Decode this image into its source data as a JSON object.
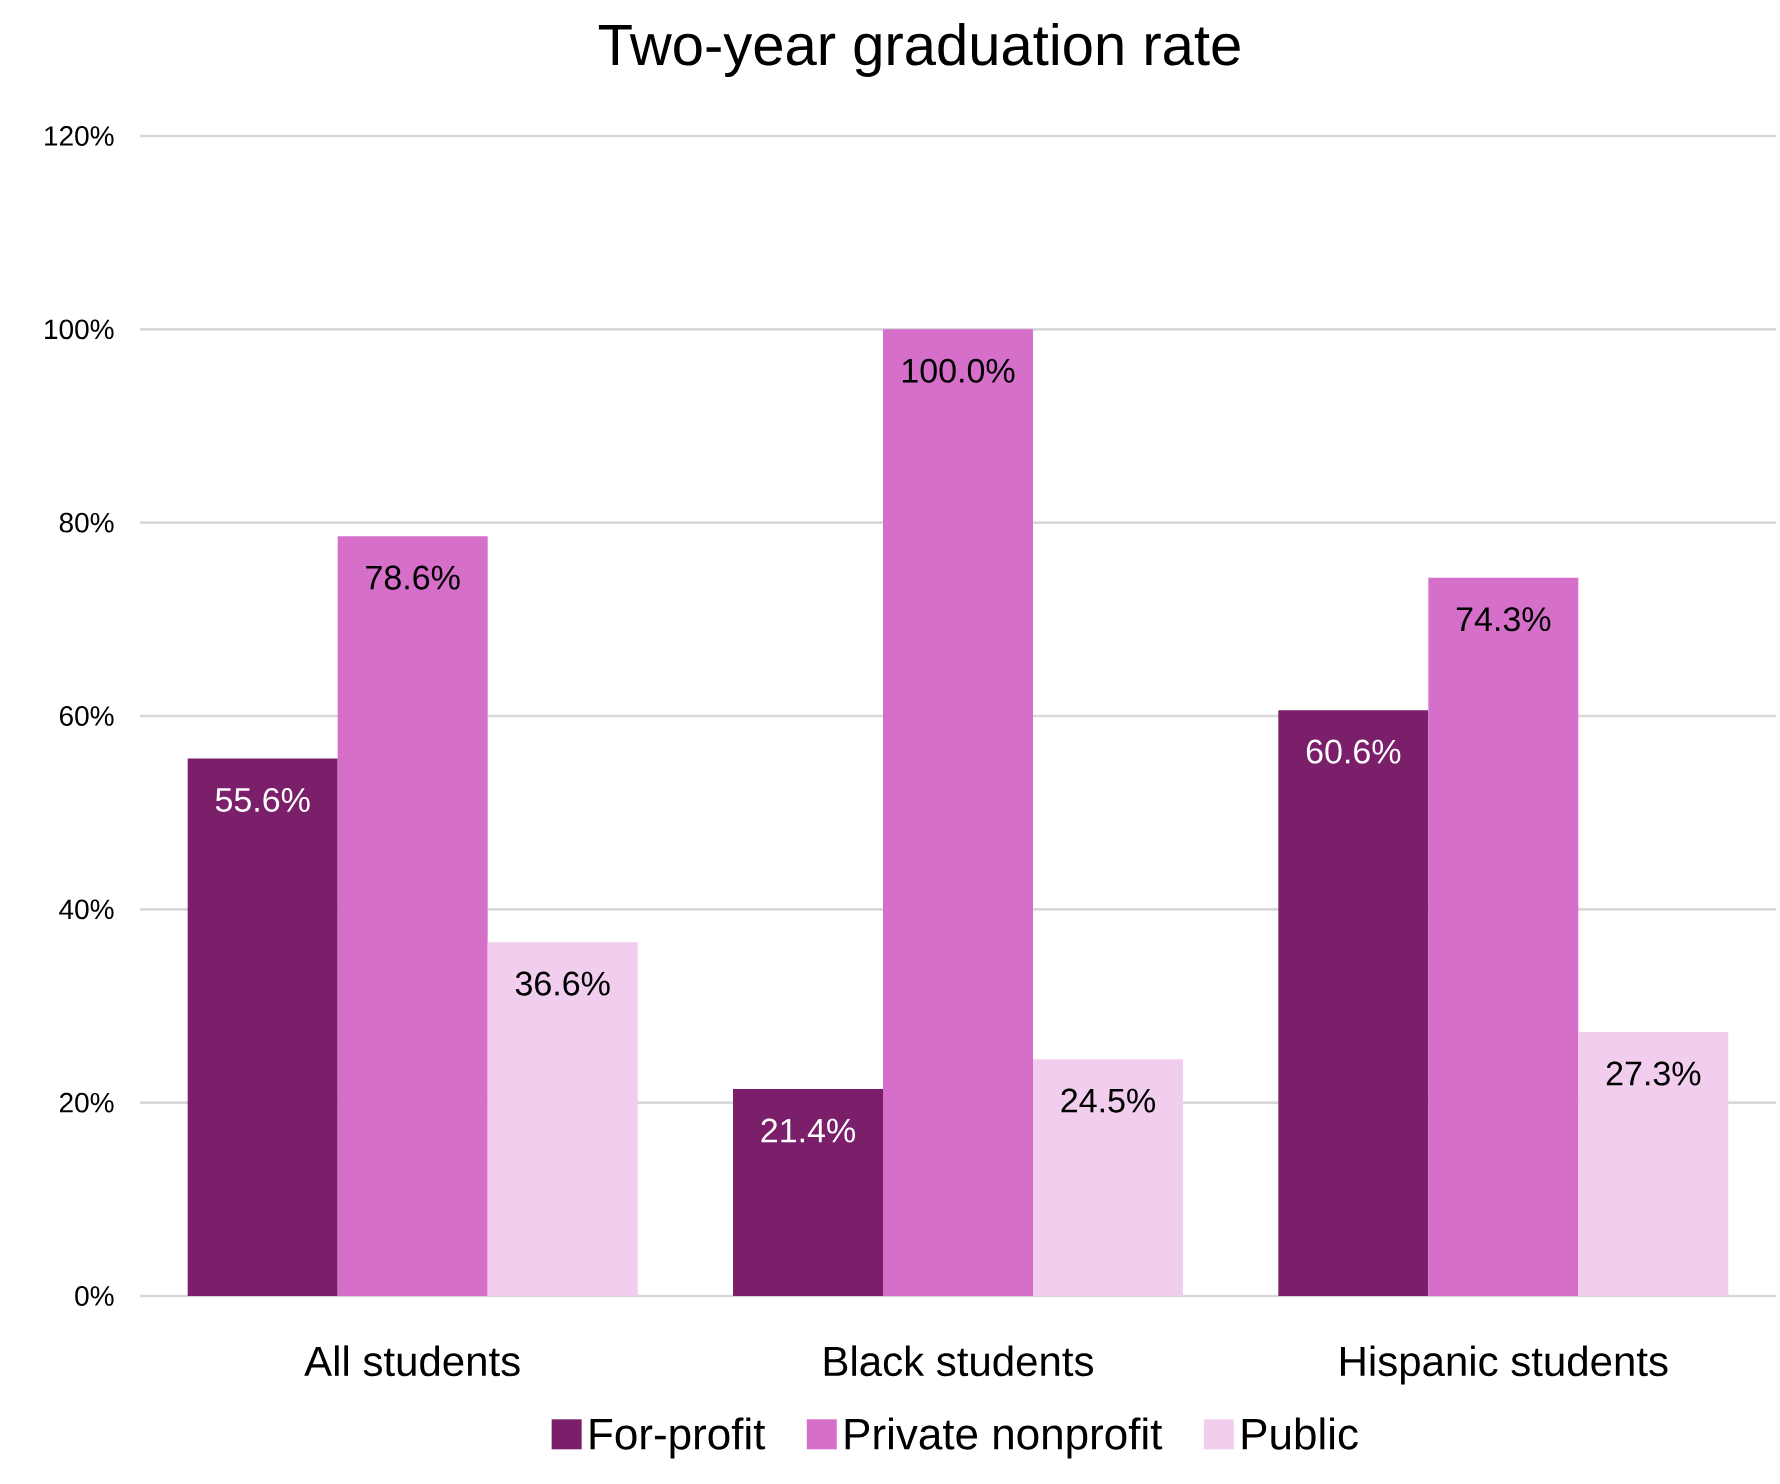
{
  "chart_data": {
    "type": "bar",
    "title": "Two-year graduation rate",
    "categories": [
      "All students",
      "Black students",
      "Hispanic students"
    ],
    "series": [
      {
        "name": "For-profit",
        "color": "#7b1f6b",
        "values": [
          55.6,
          21.4,
          60.6
        ],
        "value_labels": [
          "55.6%",
          "21.4%",
          "60.6%"
        ]
      },
      {
        "name": "Private nonprofit",
        "color": "#d66fca",
        "values": [
          78.6,
          100.0,
          74.3
        ],
        "value_labels": [
          "78.6%",
          "100.0%",
          "74.3%"
        ]
      },
      {
        "name": "Public",
        "color": "#f1cdee",
        "values": [
          36.6,
          24.5,
          27.3
        ],
        "value_labels": [
          "36.6%",
          "24.5%",
          "27.3%"
        ]
      }
    ],
    "ylim": [
      0,
      120
    ],
    "yticks": [
      {
        "value": 0,
        "label": "0%"
      },
      {
        "value": 20,
        "label": "20%"
      },
      {
        "value": 40,
        "label": "40%"
      },
      {
        "value": 60,
        "label": "60%"
      },
      {
        "value": 80,
        "label": "80%"
      },
      {
        "value": 100,
        "label": "100%"
      },
      {
        "value": 120,
        "label": "120%"
      }
    ],
    "grid": "y",
    "legend": "bottom"
  }
}
